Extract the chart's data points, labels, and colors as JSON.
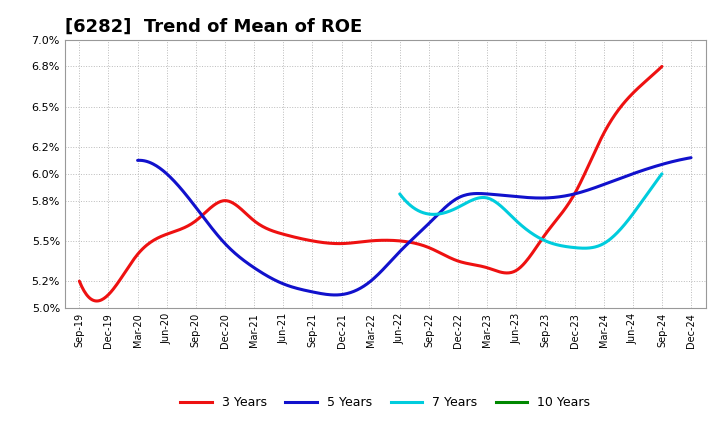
{
  "title": "[6282]  Trend of Mean of ROE",
  "ylim": [
    0.05,
    0.07
  ],
  "yticks": [
    0.05,
    0.052,
    0.055,
    0.058,
    0.06,
    0.062,
    0.065,
    0.068,
    0.07
  ],
  "ytick_labels": [
    "5.0%",
    "5.2%",
    "5.5%",
    "5.8%",
    "6.0%",
    "6.2%",
    "6.5%",
    "6.8%",
    "7.0%"
  ],
  "x_labels": [
    "Sep-19",
    "Dec-19",
    "Mar-20",
    "Jun-20",
    "Sep-20",
    "Dec-20",
    "Mar-21",
    "Jun-21",
    "Sep-21",
    "Dec-21",
    "Mar-22",
    "Jun-22",
    "Sep-22",
    "Dec-22",
    "Mar-23",
    "Jun-23",
    "Sep-23",
    "Dec-23",
    "Mar-24",
    "Jun-24",
    "Sep-24",
    "Dec-24"
  ],
  "series": {
    "3 Years": {
      "color": "#EE1111",
      "data": [
        0.052,
        0.051,
        0.054,
        0.0555,
        0.0565,
        0.058,
        0.0565,
        0.0555,
        0.055,
        0.0548,
        0.055,
        0.055,
        0.0545,
        0.0535,
        0.053,
        0.0528,
        0.0555,
        0.0585,
        0.063,
        0.066,
        0.068,
        null
      ]
    },
    "5 Years": {
      "color": "#1111CC",
      "data": [
        null,
        null,
        0.061,
        0.06,
        0.0575,
        0.0548,
        0.053,
        0.0518,
        0.0512,
        0.051,
        0.052,
        0.0542,
        0.0563,
        0.0582,
        0.0585,
        0.0583,
        0.0582,
        0.0585,
        0.0592,
        0.06,
        0.0607,
        0.0612
      ]
    },
    "7 Years": {
      "color": "#00CCDD",
      "data": [
        null,
        null,
        null,
        null,
        null,
        null,
        null,
        null,
        null,
        null,
        null,
        0.0585,
        0.057,
        0.0575,
        0.0582,
        0.0565,
        0.055,
        0.0545,
        0.0548,
        0.057,
        0.06,
        null
      ]
    },
    "10 Years": {
      "color": "#008800",
      "data": [
        null,
        null,
        null,
        null,
        null,
        null,
        null,
        null,
        null,
        null,
        null,
        null,
        null,
        null,
        null,
        null,
        null,
        null,
        null,
        null,
        null,
        null
      ]
    }
  },
  "background_color": "#FFFFFF",
  "plot_bg_color": "#FFFFFF",
  "grid_color": "#AAAAAA",
  "title_fontsize": 13,
  "legend_colors": {
    "3 Years": "#EE1111",
    "5 Years": "#1111CC",
    "7 Years": "#00CCDD",
    "10 Years": "#008800"
  }
}
